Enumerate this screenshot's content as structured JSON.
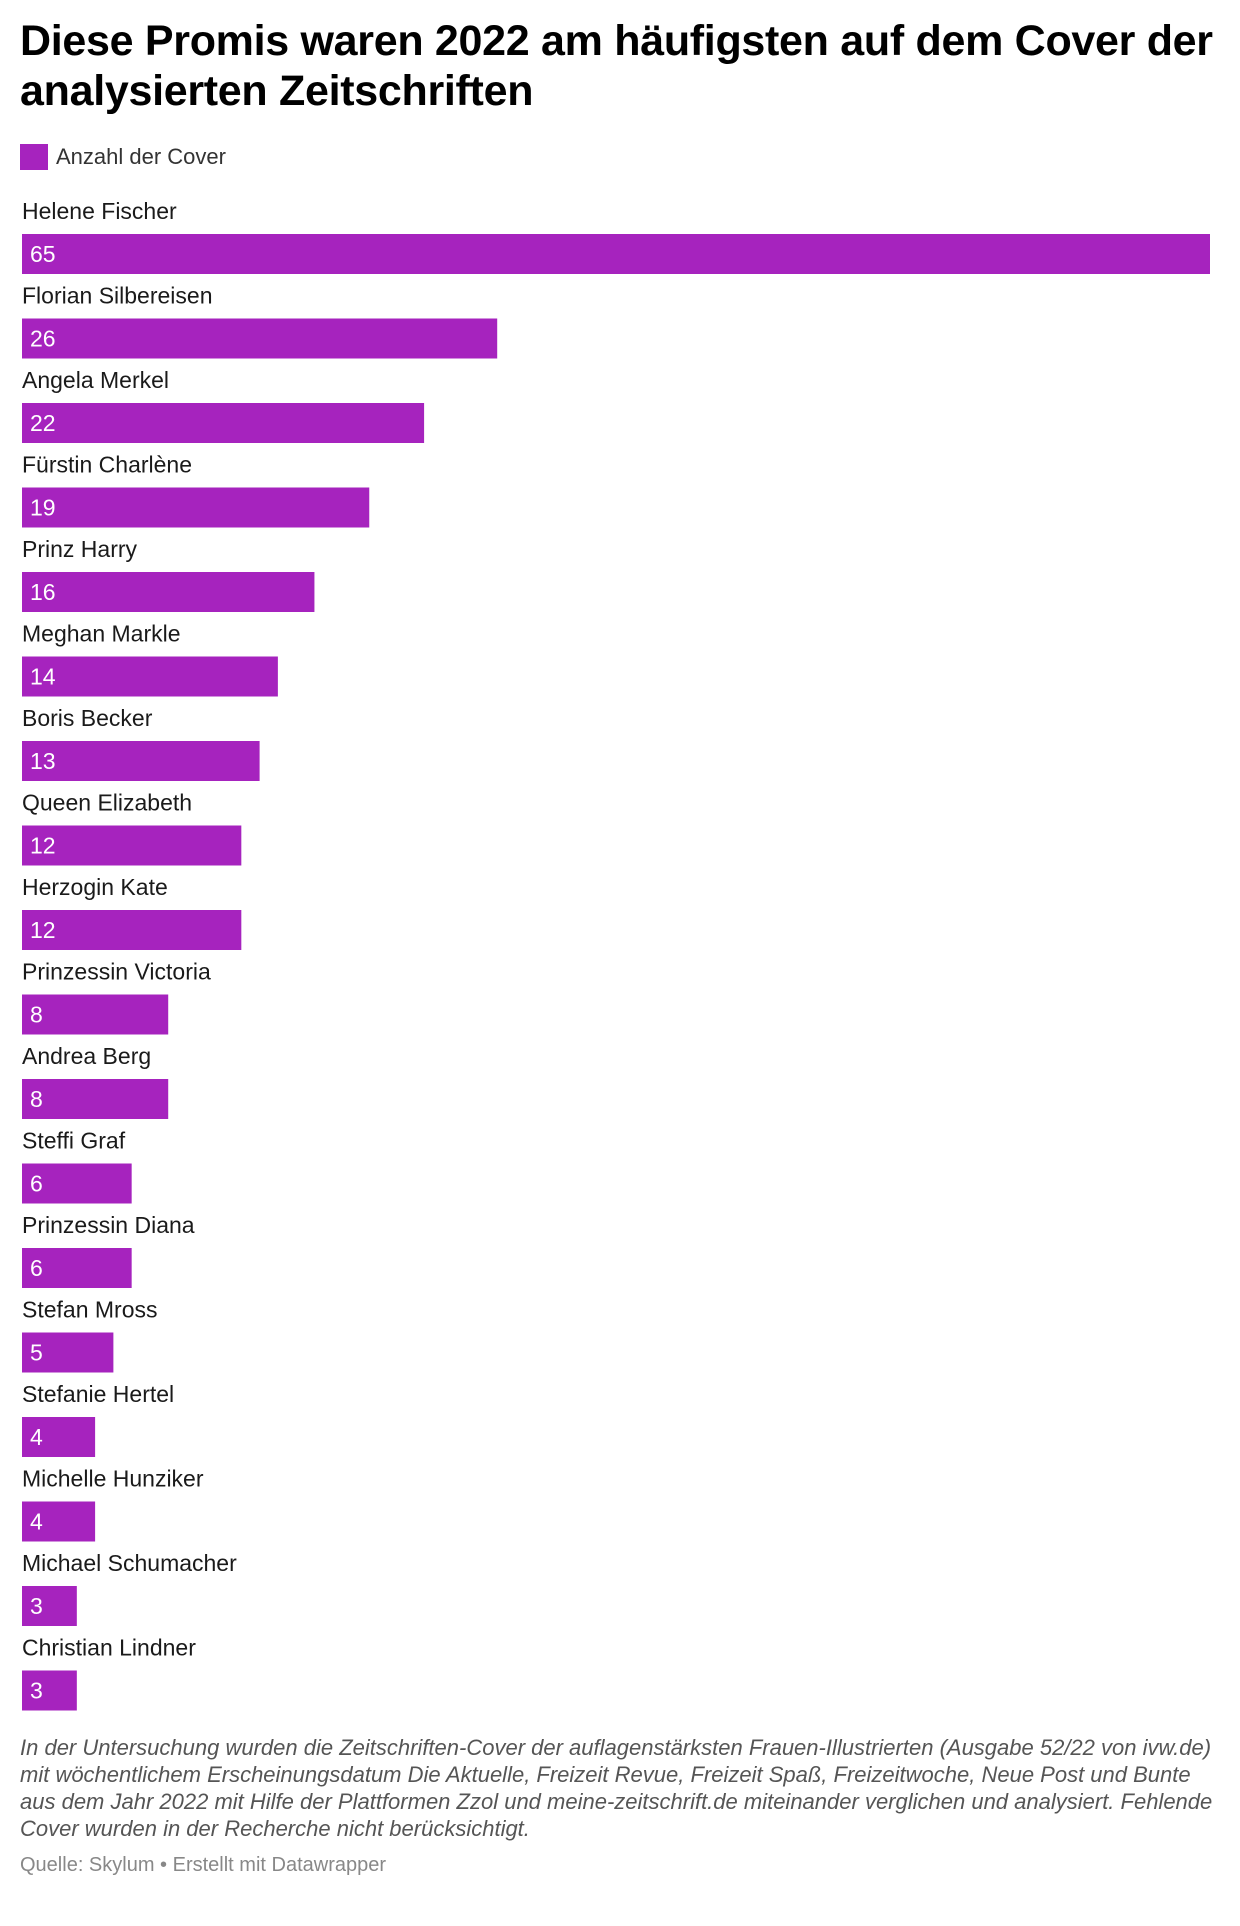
{
  "chart_data": {
    "type": "bar",
    "orientation": "horizontal",
    "title": "Diese Promis waren 2022 am häufigsten auf dem Cover der analysierten Zeitschriften",
    "legend": "Anzahl der Cover",
    "legend_position": "top-left",
    "bar_color": "#a623be",
    "xlim": [
      0,
      65
    ],
    "grid": false,
    "categories": [
      "Helene Fischer",
      "Florian Silbereisen",
      "Angela Merkel",
      "Fürstin Charlène",
      "Prinz Harry",
      "Meghan Markle",
      "Boris Becker",
      "Queen Elizabeth",
      "Herzogin Kate",
      "Prinzessin Victoria",
      "Andrea Berg",
      "Steffi Graf",
      "Prinzessin Diana",
      "Stefan Mross",
      "Stefanie Hertel",
      "Michelle Hunziker",
      "Michael Schumacher",
      "Christian Lindner"
    ],
    "series": [
      {
        "name": "Anzahl der Cover",
        "values": [
          65,
          26,
          22,
          19,
          16,
          14,
          13,
          12,
          12,
          8,
          8,
          6,
          6,
          5,
          4,
          4,
          3,
          3
        ]
      }
    ],
    "notes": "In der Untersuchung wurden die Zeitschriften-Cover der auflagenstärksten Frauen-Illustrierten (Ausgabe 52/22 von ivw.de) mit wöchentlichem Erscheinungsdatum Die Aktuelle, Freizeit Revue, Freizeit Spaß, Freizeitwoche, Neue Post und Bunte aus dem Jahr 2022 mit Hilfe der Plattformen Zzol und meine-zeitschrift.de miteinander verglichen und analysiert. Fehlende Cover wurden in der Recherche nicht berücksichtigt.",
    "source": "Quelle: Skylum • Erstellt mit Datawrapper"
  }
}
